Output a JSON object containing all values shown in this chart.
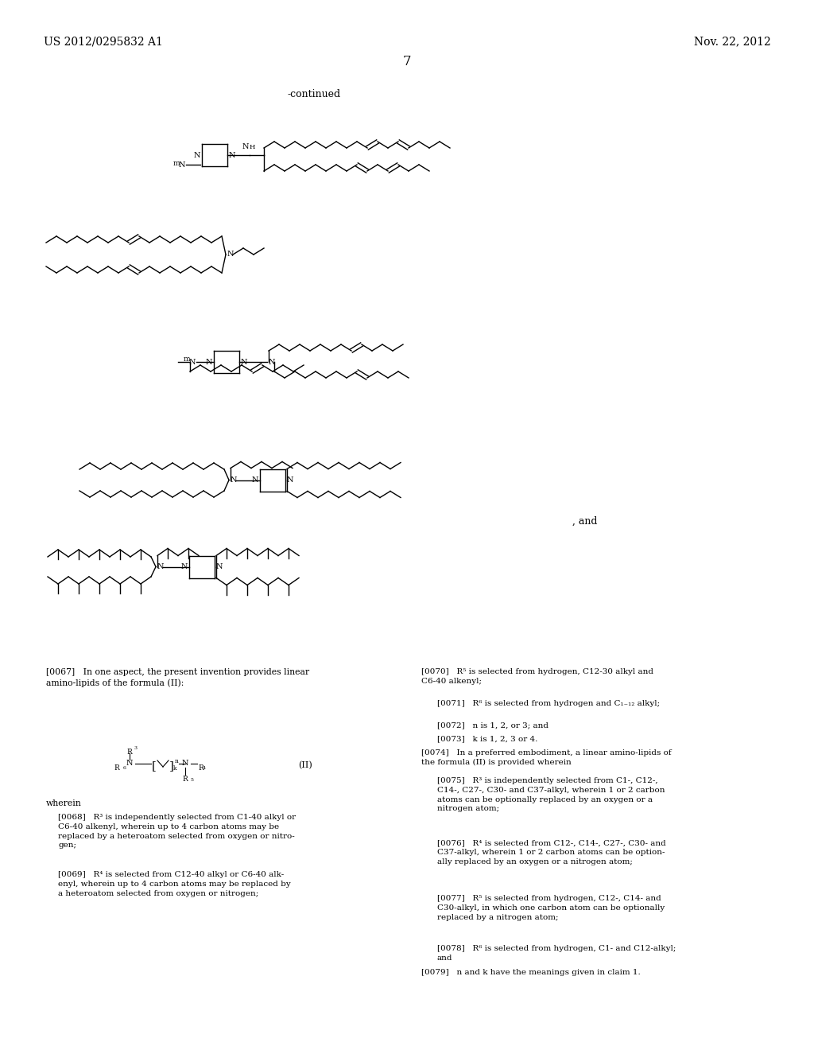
{
  "page_header_left": "US 2012/0295832 A1",
  "page_header_right": "Nov. 22, 2012",
  "page_number": "7",
  "continued_label": "-continued",
  "background_color": "#ffffff",
  "text_color": "#000000",
  "paragraph_0067": "[0067]   In one aspect, the present invention provides linear\namino-lipids of the formula (II):",
  "formula_label": "(II)",
  "wherein_text": "wherein",
  "paragraph_0068": "[0068]   R³ is independently selected from C1-40 alkyl or\nC6-40 alkenyl, wherein up to 4 carbon atoms may be\nreplaced by a heteroatom selected from oxygen or nitro-\ngen;",
  "paragraph_0069": "[0069]   R⁴ is selected from C12-40 alkyl or C6-40 alk-\nenyl, wherein up to 4 carbon atoms may be replaced by\na heteroatom selected from oxygen or nitrogen;",
  "paragraph_0070": "[0070]   R⁵ is selected from hydrogen, C12-30 alkyl and\nC6-40 alkenyl;",
  "paragraph_0071": "[0071]   R⁶ is selected from hydrogen and C₁₋₁₂ alkyl;",
  "paragraph_0072": "[0072]   n is 1, 2, or 3; and",
  "paragraph_0073": "[0073]   k is 1, 2, 3 or 4.",
  "paragraph_0074": "[0074]   In a preferred embodiment, a linear amino-lipids of\nthe formula (II) is provided wherein",
  "paragraph_0075": "[0075]   R³ is independently selected from C1-, C12-,\nC14-, C27-, C30- and C37-alkyl, wherein 1 or 2 carbon\natoms can be optionally replaced by an oxygen or a\nnitrogen atom;",
  "paragraph_0076": "[0076]   R⁴ is selected from C12-, C14-, C27-, C30- and\nC37-alkyl, wherein 1 or 2 carbon atoms can be option-\nally replaced by an oxygen or a nitrogen atom;",
  "paragraph_0077": "[0077]   R⁵ is selected from hydrogen, C12-, C14- and\nC30-alkyl, in which one carbon atom can be optionally\nreplaced by a nitrogen atom;",
  "paragraph_0078": "[0078]   R⁶ is selected from hydrogen, C1- and C12-alkyl;\nand",
  "paragraph_0079": "[0079]   n and k have the meanings given in claim 1."
}
